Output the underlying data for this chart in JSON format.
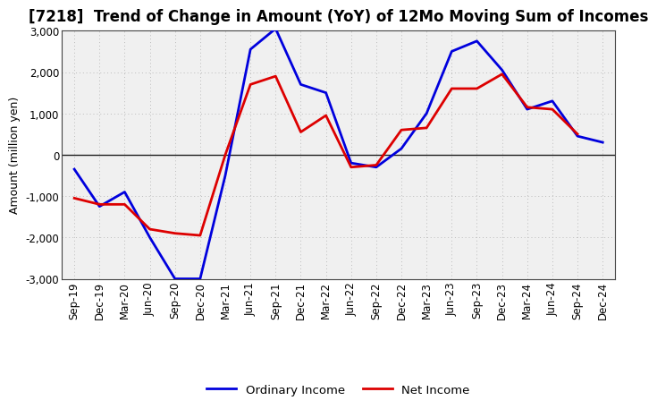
{
  "title": "[7218]  Trend of Change in Amount (YoY) of 12Mo Moving Sum of Incomes",
  "ylabel": "Amount (million yen)",
  "xlabels": [
    "Sep-19",
    "Dec-19",
    "Mar-20",
    "Jun-20",
    "Sep-20",
    "Dec-20",
    "Mar-21",
    "Jun-21",
    "Sep-21",
    "Dec-21",
    "Mar-22",
    "Jun-22",
    "Sep-22",
    "Dec-22",
    "Mar-23",
    "Jun-23",
    "Sep-23",
    "Dec-23",
    "Mar-24",
    "Jun-24",
    "Sep-24",
    "Dec-24"
  ],
  "ordinary_income": [
    -350,
    -1250,
    -900,
    -2000,
    -3000,
    -3000,
    -500,
    2550,
    3050,
    1700,
    1500,
    -200,
    -300,
    150,
    1000,
    2500,
    2750,
    2050,
    1100,
    1300,
    450,
    300
  ],
  "net_income": [
    -1050,
    -1200,
    -1200,
    -1800,
    -1900,
    -1950,
    0,
    1700,
    1900,
    550,
    950,
    -300,
    -250,
    600,
    650,
    1600,
    1600,
    1950,
    1150,
    1100,
    500,
    null
  ],
  "ordinary_color": "#0000dd",
  "net_color": "#dd0000",
  "ylim": [
    -3000,
    3000
  ],
  "yticks": [
    -3000,
    -2000,
    -1000,
    0,
    1000,
    2000,
    3000
  ],
  "legend_ordinary": "Ordinary Income",
  "legend_net": "Net Income",
  "background_color": "#ffffff",
  "plot_bg_color": "#f0f0f0",
  "grid_color": "#bbbbbb",
  "line_width": 2.0,
  "title_fontsize": 12,
  "axis_fontsize": 9,
  "tick_fontsize": 8.5
}
